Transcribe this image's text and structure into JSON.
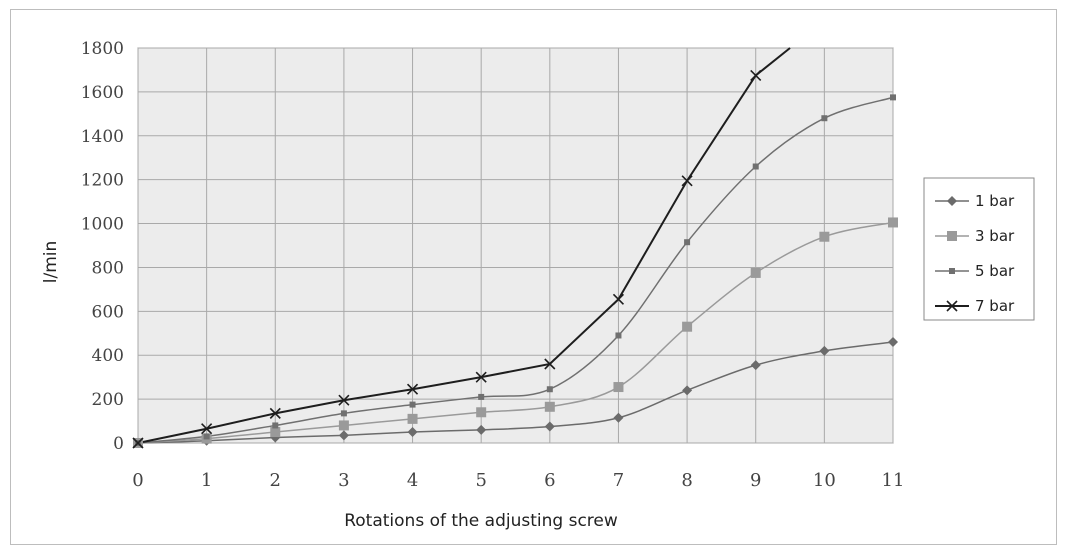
{
  "chart_data": {
    "type": "line",
    "title": "",
    "xlabel": "Rotations of the adjusting screw",
    "ylabel": "l/min",
    "xlim": [
      0,
      11
    ],
    "ylim": [
      0,
      1800
    ],
    "x_ticks": [
      "0",
      "1",
      "2",
      "3",
      "4",
      "5",
      "6",
      "7",
      "8",
      "9",
      "10",
      "11"
    ],
    "y_ticks": [
      "0",
      "200",
      "400",
      "600",
      "800",
      "1000",
      "1200",
      "1400",
      "1600",
      "1800"
    ],
    "grid": true,
    "legend_position": "right",
    "series": [
      {
        "name": "1 bar",
        "marker": "diamond",
        "color": "#6b6b6b",
        "x": [
          0,
          1,
          2,
          3,
          4,
          5,
          6,
          7,
          8,
          9,
          10,
          11
        ],
        "values": [
          0,
          10,
          25,
          35,
          50,
          60,
          75,
          115,
          240,
          355,
          420,
          460
        ]
      },
      {
        "name": "3 bar",
        "marker": "square",
        "color": "#9a9a9a",
        "x": [
          0,
          1,
          2,
          3,
          4,
          5,
          6,
          7,
          8,
          9,
          10,
          11
        ],
        "values": [
          0,
          20,
          50,
          80,
          110,
          140,
          165,
          255,
          530,
          775,
          940,
          1005
        ]
      },
      {
        "name": "5 bar",
        "marker": "small-square",
        "color": "#707070",
        "x": [
          0,
          1,
          2,
          3,
          4,
          5,
          6,
          7,
          8,
          9,
          10,
          11
        ],
        "values": [
          0,
          30,
          80,
          135,
          175,
          210,
          245,
          490,
          915,
          1260,
          1480,
          1575
        ]
      },
      {
        "name": "7 bar",
        "marker": "x",
        "color": "#1e1e1e",
        "x": [
          0,
          1,
          2,
          3,
          4,
          5,
          6,
          7,
          8,
          9,
          9.5
        ],
        "values": [
          0,
          65,
          135,
          195,
          245,
          300,
          360,
          655,
          1195,
          1675,
          1800
        ]
      }
    ]
  }
}
